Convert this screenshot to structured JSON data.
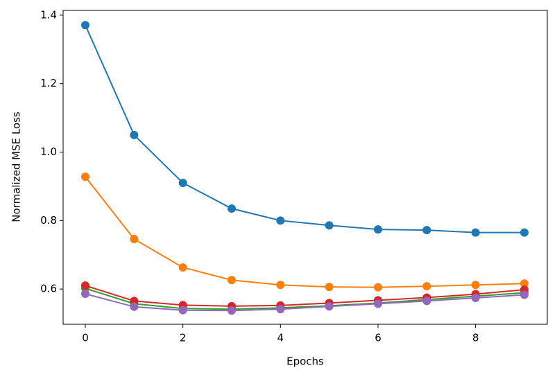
{
  "chart_data": {
    "type": "line",
    "x_label": "Epochs",
    "y_label": "Normalized MSE Loss",
    "x": [
      0,
      1,
      2,
      3,
      4,
      5,
      6,
      7,
      8,
      9
    ],
    "series": [
      {
        "color": "#1f77b4",
        "values": [
          1.371,
          1.05,
          0.91,
          0.835,
          0.8,
          0.786,
          0.774,
          0.772,
          0.765,
          0.765
        ]
      },
      {
        "color": "#ff7f0e",
        "values": [
          0.928,
          0.746,
          0.663,
          0.626,
          0.612,
          0.606,
          0.605,
          0.608,
          0.612,
          0.616
        ]
      },
      {
        "color": "#2ca02c",
        "values": [
          0.602,
          0.557,
          0.543,
          0.541,
          0.545,
          0.551,
          0.559,
          0.569,
          0.579,
          0.589
        ]
      },
      {
        "color": "#d62728",
        "values": [
          0.61,
          0.565,
          0.553,
          0.55,
          0.552,
          0.559,
          0.567,
          0.575,
          0.585,
          0.598
        ]
      },
      {
        "color": "#9467bd",
        "values": [
          0.586,
          0.548,
          0.538,
          0.537,
          0.541,
          0.549,
          0.557,
          0.565,
          0.574,
          0.583
        ]
      }
    ],
    "xlim": [
      -0.455,
      9.47
    ],
    "ylim": [
      0.497,
      1.414
    ],
    "xticks": [
      0,
      2,
      4,
      6,
      8
    ],
    "yticks": [
      0.6,
      0.8,
      {
        "value": 1.0,
        "label": "1.0"
      },
      1.2,
      1.4
    ],
    "grid": false
  }
}
